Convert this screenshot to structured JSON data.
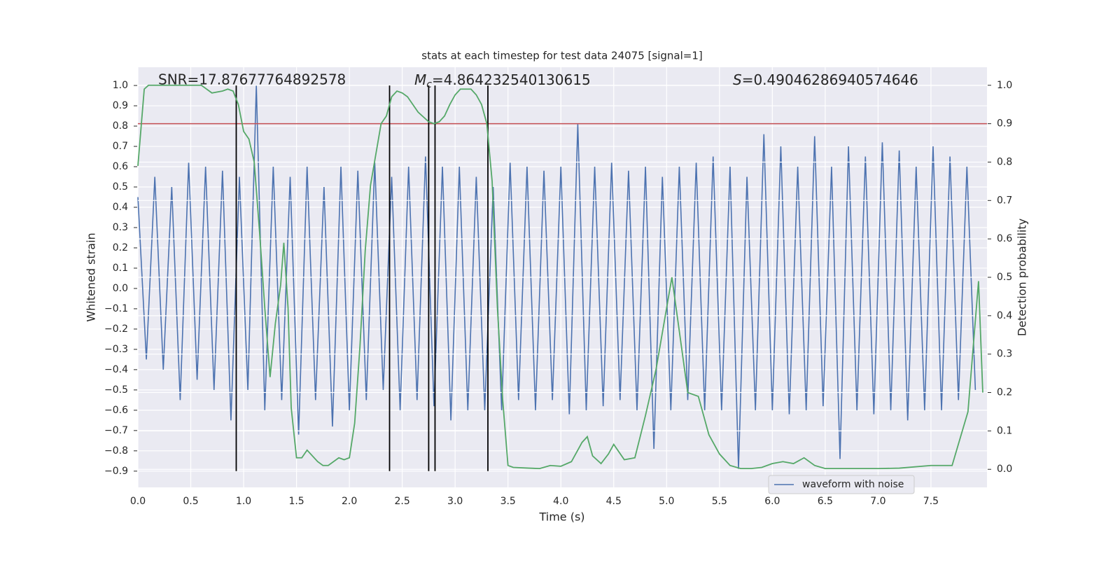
{
  "chart_data": {
    "type": "line",
    "title": "stats at each timestep for test data 24075 [signal=1]",
    "x_label": "Time (s)",
    "y_label": "Whitened strain",
    "y2_label": "Detection probability",
    "annotations": {
      "snr": "SNR=17.87677764892578",
      "mc": {
        "symbol": "M",
        "subscript": "c",
        "text": "=4.864232540130615"
      },
      "s": {
        "symbol": "S",
        "text": "=0.49046286940574646"
      }
    },
    "xlim": [
      0,
      8.03
    ],
    "xticks": [
      {
        "value": 0,
        "label": "0.0"
      },
      0.5,
      {
        "value": 1,
        "label": "1.0"
      },
      1.5,
      {
        "value": 2,
        "label": "2.0"
      },
      2.5,
      {
        "value": 3,
        "label": "3.0"
      },
      3.5,
      {
        "value": 4,
        "label": "4.0"
      },
      4.5,
      {
        "value": 5,
        "label": "5.0"
      },
      5.5,
      {
        "value": 6,
        "label": "6.0"
      },
      6.5,
      {
        "value": 7,
        "label": "7.0"
      },
      7.5
    ],
    "ylim": [
      -0.98,
      1.09
    ],
    "yticks": [
      {
        "value": -0.9,
        "label": "−0.9"
      },
      {
        "value": -0.8,
        "label": "−0.8"
      },
      {
        "value": -0.7,
        "label": "−0.7"
      },
      {
        "value": -0.6,
        "label": "−0.6"
      },
      {
        "value": -0.5,
        "label": "−0.5"
      },
      {
        "value": -0.4,
        "label": "−0.4"
      },
      {
        "value": -0.3,
        "label": "−0.3"
      },
      {
        "value": -0.2,
        "label": "−0.2"
      },
      {
        "value": -0.1,
        "label": "−0.1"
      },
      {
        "value": 0,
        "label": "0.0"
      },
      0.1,
      0.2,
      0.3,
      0.4,
      0.5,
      0.6,
      0.7,
      0.8,
      0.9,
      {
        "value": 1,
        "label": "1.0"
      }
    ],
    "y2lim": [
      -0.047,
      1.047
    ],
    "y2ticks": [
      {
        "value": 0,
        "label": "0.0"
      },
      0.1,
      0.2,
      0.3,
      0.4,
      0.5,
      0.6,
      0.7,
      0.8,
      0.9,
      {
        "value": 1,
        "label": "1.0"
      }
    ],
    "grid": true,
    "legend_loc": "lower right",
    "threshold": {
      "value": 0.9,
      "axis": "y2",
      "color": "#c44e52"
    },
    "vlines": {
      "values": [
        0.93,
        2.38,
        2.75,
        2.81,
        3.31
      ],
      "color": "#000000"
    },
    "series": [
      {
        "name": "waveform with noise",
        "color": "#4c72b0",
        "x": [
          0,
          0.08,
          0.16,
          0.24,
          0.32,
          0.4,
          0.48,
          0.56,
          0.64,
          0.72,
          0.8,
          0.88,
          0.96,
          1.04,
          1.12,
          1.2,
          1.28,
          1.36,
          1.44,
          1.52,
          1.6,
          1.68,
          1.76,
          1.84,
          1.92,
          2,
          2.08,
          2.16,
          2.24,
          2.32,
          2.4,
          2.48,
          2.56,
          2.64,
          2.72,
          2.8,
          2.88,
          2.96,
          3.04,
          3.12,
          3.2,
          3.28,
          3.36,
          3.44,
          3.52,
          3.6,
          3.68,
          3.76,
          3.84,
          3.92,
          4,
          4.08,
          4.16,
          4.24,
          4.32,
          4.4,
          4.48,
          4.56,
          4.64,
          4.72,
          4.8,
          4.88,
          4.96,
          5.04,
          5.12,
          5.2,
          5.28,
          5.36,
          5.44,
          5.52,
          5.6,
          5.68,
          5.76,
          5.84,
          5.92,
          6,
          6.08,
          6.16,
          6.24,
          6.32,
          6.4,
          6.48,
          6.56,
          6.64,
          6.72,
          6.8,
          6.88,
          6.96,
          7.04,
          7.12,
          7.2,
          7.28,
          7.36,
          7.44,
          7.52,
          7.6,
          7.68,
          7.76,
          7.84,
          7.92
        ],
        "values": [
          0.45,
          -0.35,
          0.55,
          -0.4,
          0.5,
          -0.55,
          0.62,
          -0.45,
          0.6,
          -0.5,
          0.58,
          -0.65,
          0.55,
          -0.5,
          1.0,
          -0.6,
          0.6,
          -0.55,
          0.55,
          -0.72,
          0.6,
          -0.55,
          0.5,
          -0.68,
          0.6,
          -0.6,
          0.58,
          -0.55,
          0.62,
          -0.5,
          0.55,
          -0.6,
          0.6,
          -0.55,
          0.65,
          -0.58,
          0.6,
          -0.65,
          0.6,
          -0.6,
          0.55,
          -0.6,
          0.5,
          -0.6,
          0.62,
          -0.55,
          0.6,
          -0.6,
          0.58,
          -0.55,
          0.6,
          -0.62,
          0.81,
          -0.6,
          0.6,
          -0.58,
          0.62,
          -0.55,
          0.58,
          -0.6,
          0.6,
          -0.79,
          0.55,
          -0.6,
          0.6,
          -0.55,
          0.62,
          -0.6,
          0.65,
          -0.6,
          0.6,
          -0.89,
          0.55,
          -0.6,
          0.76,
          -0.6,
          0.7,
          -0.62,
          0.6,
          -0.6,
          0.75,
          -0.58,
          0.6,
          -0.84,
          0.7,
          -0.6,
          0.65,
          -0.62,
          0.72,
          -0.6,
          0.68,
          -0.65,
          0.6,
          -0.6,
          0.7,
          -0.6,
          0.65,
          -0.55,
          0.6,
          -0.5
        ]
      },
      {
        "color": "#55a868",
        "axis": "y2",
        "x": [
          0,
          0.06,
          0.1,
          0.6,
          0.7,
          0.8,
          0.85,
          0.9,
          0.95,
          1.0,
          1.05,
          1.1,
          1.15,
          1.2,
          1.25,
          1.3,
          1.35,
          1.38,
          1.42,
          1.45,
          1.5,
          1.55,
          1.6,
          1.7,
          1.75,
          1.8,
          1.9,
          1.95,
          2.0,
          2.05,
          2.1,
          2.15,
          2.2,
          2.25,
          2.3,
          2.35,
          2.4,
          2.45,
          2.5,
          2.55,
          2.6,
          2.65,
          2.75,
          2.8,
          2.85,
          2.9,
          2.95,
          3.0,
          3.05,
          3.15,
          3.2,
          3.25,
          3.3,
          3.35,
          3.4,
          3.45,
          3.5,
          3.55,
          3.7,
          3.8,
          3.9,
          4.0,
          4.1,
          4.2,
          4.25,
          4.3,
          4.38,
          4.45,
          4.5,
          4.6,
          4.7,
          4.8,
          4.9,
          5.0,
          5.05,
          5.1,
          5.2,
          5.3,
          5.4,
          5.5,
          5.6,
          5.7,
          5.8,
          5.9,
          6.0,
          6.1,
          6.2,
          6.3,
          6.4,
          6.5,
          7.0,
          7.2,
          7.5,
          7.7,
          7.85,
          7.95,
          7.99
        ],
        "values": [
          0.79,
          0.99,
          1.0,
          1.0,
          0.98,
          0.985,
          0.99,
          0.985,
          0.95,
          0.88,
          0.86,
          0.8,
          0.62,
          0.42,
          0.24,
          0.38,
          0.48,
          0.59,
          0.42,
          0.16,
          0.03,
          0.03,
          0.05,
          0.02,
          0.01,
          0.01,
          0.03,
          0.025,
          0.03,
          0.12,
          0.32,
          0.57,
          0.74,
          0.82,
          0.9,
          0.92,
          0.97,
          0.985,
          0.98,
          0.97,
          0.95,
          0.93,
          0.905,
          0.9,
          0.905,
          0.92,
          0.95,
          0.975,
          0.99,
          0.99,
          0.975,
          0.95,
          0.9,
          0.75,
          0.42,
          0.18,
          0.01,
          0.005,
          0.003,
          0.002,
          0.01,
          0.008,
          0.02,
          0.07,
          0.085,
          0.035,
          0.015,
          0.04,
          0.065,
          0.025,
          0.03,
          0.14,
          0.26,
          0.42,
          0.5,
          0.4,
          0.2,
          0.19,
          0.09,
          0.04,
          0.01,
          0.002,
          0.002,
          0.005,
          0.015,
          0.02,
          0.015,
          0.03,
          0.01,
          0.002,
          0.002,
          0.003,
          0.01,
          0.01,
          0.15,
          0.49,
          0.2
        ]
      }
    ]
  }
}
